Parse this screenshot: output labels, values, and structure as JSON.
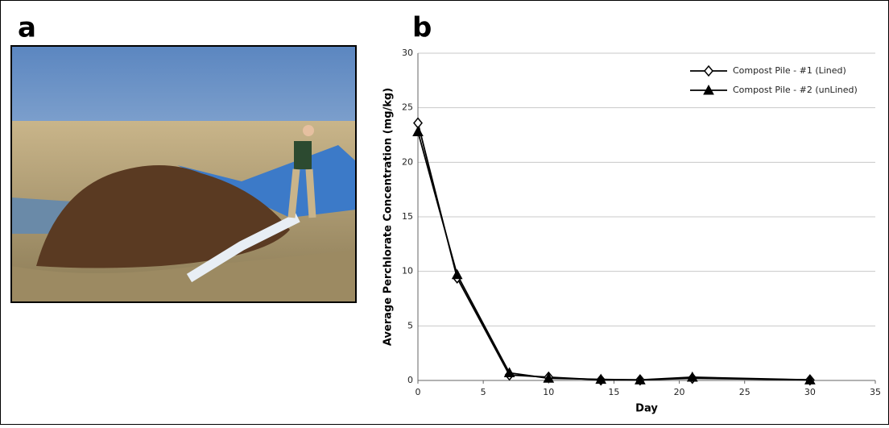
{
  "panel_labels": [
    "a",
    "b"
  ],
  "chart_data": {
    "type": "line",
    "x_label": "Day",
    "y_label": "Average Perchlorate Concentration (mg/kg)",
    "x": [
      0,
      3,
      7,
      10,
      14,
      17,
      21,
      30
    ],
    "series": [
      {
        "name": "Compost Pile - #1 (Lined)",
        "color": "#000000",
        "marker": "diamond",
        "values": [
          23.6,
          9.4,
          0.5,
          0.3,
          0.05,
          0.05,
          0.2,
          0.05
        ]
      },
      {
        "name": "Compost Pile - #2 (unLined)",
        "color": "#000000",
        "marker": "triangle",
        "values": [
          22.8,
          9.7,
          0.7,
          0.2,
          0.1,
          0.05,
          0.3,
          0.05
        ]
      }
    ],
    "xlim": [
      0,
      35
    ],
    "xticks": [
      0,
      5,
      10,
      15,
      20,
      25,
      30,
      35
    ],
    "ylim": [
      0,
      30
    ],
    "yticks": [
      0,
      5,
      10,
      15,
      20,
      25,
      30
    ],
    "grid": true,
    "legend": "top-right"
  }
}
